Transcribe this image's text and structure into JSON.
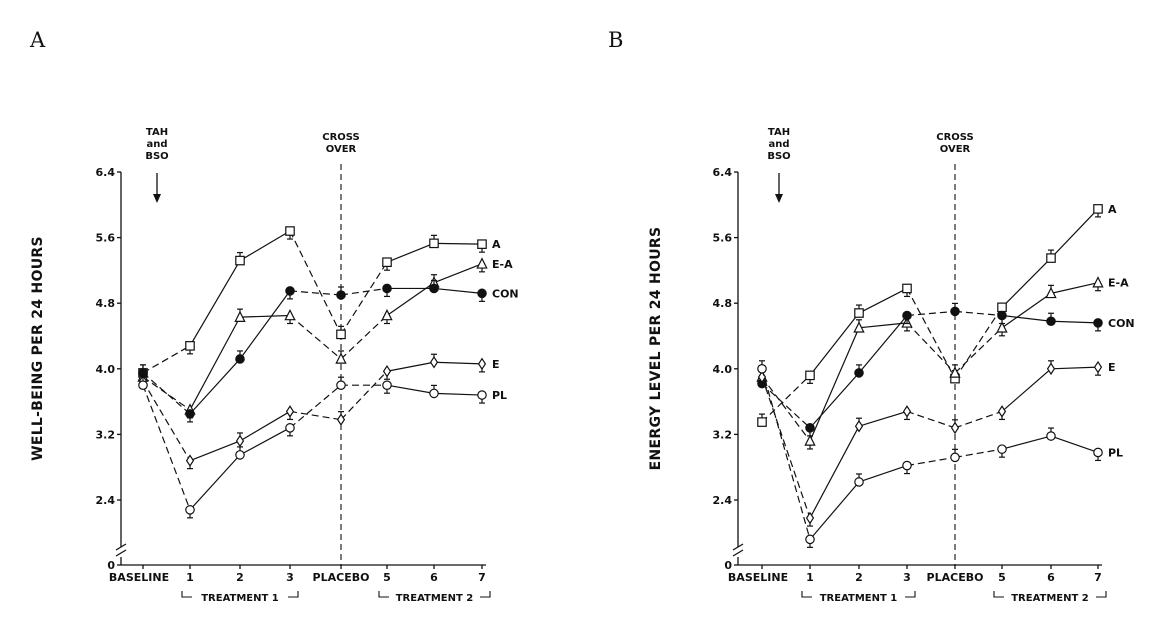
{
  "chart_data": [
    {
      "type": "line",
      "panel": "A",
      "ylabel": "WELL-BEING PER 24 HOURS",
      "ylim": [
        0,
        6.4
      ],
      "yticks": [
        "0",
        "2.4",
        "3.2",
        "4.0",
        "4.8",
        "5.6",
        "6.4"
      ],
      "categories": [
        "BASELINE",
        "1",
        "2",
        "3",
        "PLACEBO",
        "5",
        "6",
        "7"
      ],
      "annotations": {
        "surgery": [
          "TAH",
          "and",
          "BSO"
        ],
        "crossover": [
          "CROSS",
          "OVER"
        ],
        "treatment1": "TREATMENT 1",
        "treatment2": "TREATMENT 2"
      },
      "series": [
        {
          "name": "A",
          "marker": "square",
          "filled": false,
          "values": [
            3.95,
            4.28,
            5.32,
            5.68,
            4.42,
            5.3,
            5.53,
            5.52
          ]
        },
        {
          "name": "E-A",
          "marker": "triangle",
          "filled": false,
          "values": [
            3.9,
            3.5,
            4.63,
            4.65,
            4.12,
            4.65,
            5.05,
            5.28
          ]
        },
        {
          "name": "CON",
          "marker": "circle",
          "filled": true,
          "values": [
            3.95,
            3.45,
            4.12,
            4.95,
            4.9,
            4.98,
            4.98,
            4.92
          ]
        },
        {
          "name": "E",
          "marker": "diamond",
          "filled": false,
          "values": [
            3.85,
            2.88,
            3.12,
            3.48,
            3.38,
            3.97,
            4.08,
            4.06
          ]
        },
        {
          "name": "PL",
          "marker": "circle",
          "filled": false,
          "values": [
            3.8,
            2.28,
            2.95,
            3.28,
            3.8,
            3.8,
            3.7,
            3.68
          ]
        }
      ]
    },
    {
      "type": "line",
      "panel": "B",
      "ylabel": "ENERGY LEVEL PER 24 HOURS",
      "ylim": [
        0,
        6.4
      ],
      "yticks": [
        "0",
        "2.4",
        "3.2",
        "4.0",
        "4.8",
        "5.6",
        "6.4"
      ],
      "categories": [
        "BASELINE",
        "1",
        "2",
        "3",
        "PLACEBO",
        "5",
        "6",
        "7"
      ],
      "annotations": {
        "surgery": [
          "TAH",
          "and",
          "BSO"
        ],
        "crossover": [
          "CROSS",
          "OVER"
        ],
        "treatment1": "TREATMENT 1",
        "treatment2": "TREATMENT 2"
      },
      "series": [
        {
          "name": "A",
          "marker": "square",
          "filled": false,
          "values": [
            3.35,
            3.92,
            4.68,
            4.98,
            3.88,
            4.75,
            5.35,
            5.95
          ]
        },
        {
          "name": "E-A",
          "marker": "triangle",
          "filled": false,
          "values": [
            3.9,
            3.12,
            4.5,
            4.56,
            3.95,
            4.5,
            4.92,
            5.05
          ]
        },
        {
          "name": "CON",
          "marker": "circle",
          "filled": true,
          "values": [
            3.82,
            3.28,
            3.95,
            4.65,
            4.7,
            4.65,
            4.58,
            4.56
          ]
        },
        {
          "name": "E",
          "marker": "diamond",
          "filled": false,
          "values": [
            3.9,
            2.18,
            3.3,
            3.48,
            3.28,
            3.48,
            4.0,
            4.02
          ]
        },
        {
          "name": "PL",
          "marker": "circle",
          "filled": false,
          "values": [
            4.0,
            1.92,
            2.62,
            2.82,
            2.92,
            3.02,
            3.18,
            2.98
          ]
        }
      ]
    }
  ]
}
